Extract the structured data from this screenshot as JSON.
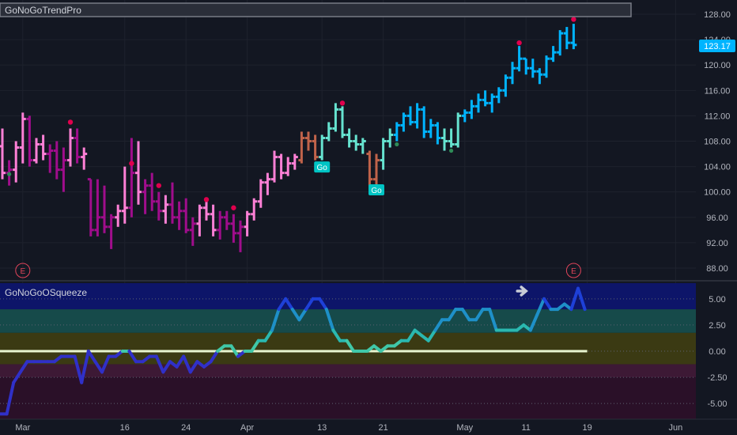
{
  "upper_panel": {
    "indicator_name": "GoNoGoTrendPro",
    "current_price": "123.17"
  },
  "lower_panel": {
    "indicator_name": "GoNoGoOSqueeze"
  },
  "chart_data": [
    {
      "type": "ohlc",
      "title": "GoNoGoTrendPro",
      "ylim": [
        86,
        130
      ],
      "y_ticks": [
        "128.00",
        "124.00",
        "120.00",
        "116.00",
        "112.00",
        "108.00",
        "104.00",
        "100.00",
        "96.00",
        "92.00",
        "88.00"
      ],
      "x_ticks": [
        "Mar",
        "16",
        "24",
        "Apr",
        "13",
        "21",
        "May",
        "11",
        "19",
        "Jun"
      ],
      "last_price": 123.17,
      "colors": {
        "go_strong": "#00b4ff",
        "go": "#66e3d0",
        "nogo_strong": "#a00d8c",
        "nogo": "#ff80d6",
        "amber": "#c0634a",
        "axis_label": "#b2b5be"
      },
      "bars": [
        {
          "o": 107.2,
          "h": 110.0,
          "l": 102.0,
          "c": 103.0,
          "col": "#ff80d6"
        },
        {
          "o": 103.0,
          "h": 105.0,
          "l": 101.0,
          "c": 103.5,
          "col": "#a00d8c"
        },
        {
          "o": 103.5,
          "h": 108.0,
          "l": 101.5,
          "c": 107.0,
          "col": "#ff80d6"
        },
        {
          "o": 107.0,
          "h": 112.5,
          "l": 104.5,
          "c": 111.5,
          "col": "#ff80d6"
        },
        {
          "o": 111.5,
          "h": 112.0,
          "l": 104.0,
          "c": 105.0,
          "col": "#a00d8c"
        },
        {
          "o": 105.0,
          "h": 108.5,
          "l": 104.5,
          "c": 107.5,
          "col": "#ff80d6"
        },
        {
          "o": 107.5,
          "h": 109.0,
          "l": 105.0,
          "c": 106.0,
          "col": "#ff80d6"
        },
        {
          "o": 106.0,
          "h": 107.5,
          "l": 103.0,
          "c": 106.5,
          "col": "#a00d8c"
        },
        {
          "o": 106.5,
          "h": 108.0,
          "l": 102.0,
          "c": 103.5,
          "col": "#a00d8c"
        },
        {
          "o": 103.5,
          "h": 107.0,
          "l": 100.0,
          "c": 105.0,
          "col": "#a00d8c"
        },
        {
          "o": 105.0,
          "h": 110.0,
          "l": 104.0,
          "c": 108.5,
          "col": "#ff80d6"
        },
        {
          "o": 108.5,
          "h": 110.0,
          "l": 104.5,
          "c": 105.5,
          "col": "#a00d8c"
        },
        {
          "o": 105.5,
          "h": 107.0,
          "l": 103.5,
          "c": 106.0,
          "col": "#ff80d6"
        },
        {
          "o": 102.0,
          "h": 102.0,
          "l": 93.0,
          "c": 94.0,
          "col": "#a00d8c"
        },
        {
          "o": 94.0,
          "h": 102.0,
          "l": 93.0,
          "c": 96.0,
          "col": "#a00d8c"
        },
        {
          "o": 96.0,
          "h": 101.0,
          "l": 93.5,
          "c": 94.5,
          "col": "#a00d8c"
        },
        {
          "o": 94.5,
          "h": 96.5,
          "l": 91.0,
          "c": 96.0,
          "col": "#a00d8c"
        },
        {
          "o": 96.0,
          "h": 98.0,
          "l": 94.5,
          "c": 97.0,
          "col": "#ff80d6"
        },
        {
          "o": 97.0,
          "h": 104.0,
          "l": 95.0,
          "c": 97.5,
          "col": "#ff80d6"
        },
        {
          "o": 97.5,
          "h": 108.5,
          "l": 96.0,
          "c": 103.0,
          "col": "#a00d8c"
        },
        {
          "o": 103.0,
          "h": 108.0,
          "l": 98.0,
          "c": 100.0,
          "col": "#ff80d6"
        },
        {
          "o": 100.0,
          "h": 102.0,
          "l": 96.5,
          "c": 101.0,
          "col": "#a00d8c"
        },
        {
          "o": 101.0,
          "h": 103.0,
          "l": 97.0,
          "c": 98.5,
          "col": "#a00d8c"
        },
        {
          "o": 98.5,
          "h": 100.0,
          "l": 95.5,
          "c": 97.0,
          "col": "#a00d8c"
        },
        {
          "o": 97.0,
          "h": 99.5,
          "l": 95.0,
          "c": 98.0,
          "col": "#ff80d6"
        },
        {
          "o": 98.0,
          "h": 101.5,
          "l": 95.0,
          "c": 96.0,
          "col": "#a00d8c"
        },
        {
          "o": 96.0,
          "h": 98.5,
          "l": 94.0,
          "c": 97.0,
          "col": "#a00d8c"
        },
        {
          "o": 97.0,
          "h": 99.0,
          "l": 93.5,
          "c": 94.0,
          "col": "#a00d8c"
        },
        {
          "o": 94.0,
          "h": 96.0,
          "l": 91.5,
          "c": 95.0,
          "col": "#a00d8c"
        },
        {
          "o": 95.0,
          "h": 98.0,
          "l": 93.0,
          "c": 97.5,
          "col": "#ff80d6"
        },
        {
          "o": 97.5,
          "h": 98.5,
          "l": 95.5,
          "c": 96.5,
          "col": "#ff80d6"
        },
        {
          "o": 96.5,
          "h": 98.0,
          "l": 93.0,
          "c": 94.0,
          "col": "#ff80d6"
        },
        {
          "o": 94.0,
          "h": 97.0,
          "l": 92.5,
          "c": 96.0,
          "col": "#a00d8c"
        },
        {
          "o": 96.0,
          "h": 97.0,
          "l": 94.0,
          "c": 95.0,
          "col": "#a00d8c"
        },
        {
          "o": 95.0,
          "h": 96.5,
          "l": 92.0,
          "c": 93.5,
          "col": "#a00d8c"
        },
        {
          "o": 93.5,
          "h": 95.5,
          "l": 90.5,
          "c": 94.5,
          "col": "#a00d8c"
        },
        {
          "o": 94.5,
          "h": 97.0,
          "l": 93.0,
          "c": 96.5,
          "col": "#ff80d6"
        },
        {
          "o": 96.5,
          "h": 99.0,
          "l": 95.5,
          "c": 98.5,
          "col": "#ff80d6"
        },
        {
          "o": 98.5,
          "h": 102.0,
          "l": 97.5,
          "c": 101.5,
          "col": "#ff80d6"
        },
        {
          "o": 101.5,
          "h": 103.0,
          "l": 99.5,
          "c": 102.0,
          "col": "#ff80d6"
        },
        {
          "o": 102.0,
          "h": 106.5,
          "l": 101.5,
          "c": 105.5,
          "col": "#ff80d6"
        },
        {
          "o": 105.5,
          "h": 106.0,
          "l": 102.0,
          "c": 103.0,
          "col": "#ff80d6"
        },
        {
          "o": 103.0,
          "h": 105.5,
          "l": 102.5,
          "c": 104.5,
          "col": "#ff80d6"
        },
        {
          "o": 104.5,
          "h": 106.0,
          "l": 103.5,
          "c": 105.5,
          "col": "#ff80d6"
        },
        {
          "o": 105.0,
          "h": 109.5,
          "l": 104.5,
          "c": 108.5,
          "col": "#c0634a"
        },
        {
          "o": 108.5,
          "h": 109.5,
          "l": 106.5,
          "c": 108.0,
          "col": "#c0634a"
        },
        {
          "o": 108.0,
          "h": 109.0,
          "l": 105.0,
          "c": 105.5,
          "col": "#c0634a"
        },
        {
          "o": 105.5,
          "h": 109.0,
          "l": 105.0,
          "c": 108.5,
          "col": "#66e3d0"
        },
        {
          "o": 108.5,
          "h": 111.0,
          "l": 108.0,
          "c": 110.0,
          "col": "#66e3d0"
        },
        {
          "o": 110.0,
          "h": 114.0,
          "l": 109.5,
          "c": 113.0,
          "col": "#66e3d0"
        },
        {
          "o": 113.0,
          "h": 113.5,
          "l": 108.5,
          "c": 109.0,
          "col": "#66e3d0"
        },
        {
          "o": 109.0,
          "h": 110.0,
          "l": 107.0,
          "c": 108.0,
          "col": "#66e3d0"
        },
        {
          "o": 108.0,
          "h": 109.0,
          "l": 106.5,
          "c": 107.5,
          "col": "#66e3d0"
        },
        {
          "o": 107.5,
          "h": 108.5,
          "l": 106.0,
          "c": 108.0,
          "col": "#66e3d0"
        },
        {
          "o": 106.0,
          "h": 106.5,
          "l": 101.0,
          "c": 102.0,
          "col": "#c0634a"
        },
        {
          "o": 102.0,
          "h": 106.0,
          "l": 101.0,
          "c": 105.0,
          "col": "#c0634a"
        },
        {
          "o": 105.0,
          "h": 108.5,
          "l": 103.5,
          "c": 108.0,
          "col": "#66e3d0"
        },
        {
          "o": 108.0,
          "h": 110.0,
          "l": 107.0,
          "c": 109.0,
          "col": "#66e3d0"
        },
        {
          "o": 109.0,
          "h": 111.0,
          "l": 108.0,
          "c": 110.5,
          "col": "#00b4ff"
        },
        {
          "o": 110.5,
          "h": 112.5,
          "l": 109.5,
          "c": 112.0,
          "col": "#00b4ff"
        },
        {
          "o": 112.0,
          "h": 113.5,
          "l": 110.5,
          "c": 111.0,
          "col": "#00b4ff"
        },
        {
          "o": 111.0,
          "h": 114.0,
          "l": 110.0,
          "c": 113.0,
          "col": "#00b4ff"
        },
        {
          "o": 113.0,
          "h": 113.5,
          "l": 108.5,
          "c": 109.5,
          "col": "#00b4ff"
        },
        {
          "o": 109.5,
          "h": 111.5,
          "l": 108.5,
          "c": 110.5,
          "col": "#00b4ff"
        },
        {
          "o": 110.5,
          "h": 111.0,
          "l": 107.5,
          "c": 108.5,
          "col": "#00b4ff"
        },
        {
          "o": 108.5,
          "h": 110.0,
          "l": 106.5,
          "c": 108.0,
          "col": "#66e3d0"
        },
        {
          "o": 108.0,
          "h": 110.0,
          "l": 107.0,
          "c": 107.5,
          "col": "#66e3d0"
        },
        {
          "o": 107.5,
          "h": 112.5,
          "l": 107.0,
          "c": 112.0,
          "col": "#66e3d0"
        },
        {
          "o": 112.0,
          "h": 113.0,
          "l": 111.0,
          "c": 112.5,
          "col": "#00b4ff"
        },
        {
          "o": 112.5,
          "h": 114.5,
          "l": 111.5,
          "c": 113.5,
          "col": "#00b4ff"
        },
        {
          "o": 113.5,
          "h": 115.5,
          "l": 112.5,
          "c": 114.5,
          "col": "#00b4ff"
        },
        {
          "o": 114.5,
          "h": 116.0,
          "l": 113.5,
          "c": 114.0,
          "col": "#00b4ff"
        },
        {
          "o": 114.0,
          "h": 115.5,
          "l": 112.5,
          "c": 115.0,
          "col": "#00b4ff"
        },
        {
          "o": 115.0,
          "h": 116.5,
          "l": 114.0,
          "c": 116.0,
          "col": "#00b4ff"
        },
        {
          "o": 116.0,
          "h": 118.5,
          "l": 115.0,
          "c": 118.0,
          "col": "#00b4ff"
        },
        {
          "o": 118.0,
          "h": 120.5,
          "l": 117.0,
          "c": 119.5,
          "col": "#00b4ff"
        },
        {
          "o": 119.5,
          "h": 123.0,
          "l": 119.0,
          "c": 121.0,
          "col": "#00b4ff"
        },
        {
          "o": 121.0,
          "h": 121.0,
          "l": 118.5,
          "c": 119.5,
          "col": "#00b4ff"
        },
        {
          "o": 119.5,
          "h": 121.0,
          "l": 118.0,
          "c": 119.0,
          "col": "#00b4ff"
        },
        {
          "o": 119.0,
          "h": 119.5,
          "l": 117.0,
          "c": 118.5,
          "col": "#00b4ff"
        },
        {
          "o": 118.5,
          "h": 121.5,
          "l": 118.0,
          "c": 121.0,
          "col": "#00b4ff"
        },
        {
          "o": 121.0,
          "h": 123.0,
          "l": 120.5,
          "c": 122.0,
          "col": "#00b4ff"
        },
        {
          "o": 122.0,
          "h": 125.5,
          "l": 121.5,
          "c": 125.0,
          "col": "#00b4ff"
        },
        {
          "o": 125.0,
          "h": 126.0,
          "l": 122.5,
          "c": 123.5,
          "col": "#00b4ff"
        },
        {
          "o": 123.5,
          "h": 126.5,
          "l": 122.5,
          "c": 123.17,
          "col": "#00b4ff"
        }
      ],
      "go_markers": [
        {
          "bar": 47,
          "price": 104.8,
          "label": "Go"
        },
        {
          "bar": 55,
          "price": 101.2,
          "label": "Go"
        }
      ],
      "nogo_dots": [
        {
          "bar": 10,
          "price": 111.0
        },
        {
          "bar": 19,
          "price": 104.5
        },
        {
          "bar": 23,
          "price": 101.0
        },
        {
          "bar": 30,
          "price": 98.8
        },
        {
          "bar": 34,
          "price": 97.5
        },
        {
          "bar": 50,
          "price": 114.0
        },
        {
          "bar": 76,
          "price": 123.5
        },
        {
          "bar": 84,
          "price": 127.2
        }
      ],
      "go_dots": [
        {
          "bar": 1,
          "price": 102.8
        },
        {
          "bar": 58,
          "price": 107.5
        },
        {
          "bar": 66,
          "price": 106.5
        }
      ],
      "earnings_markers": [
        {
          "bar": 3,
          "label": "E"
        },
        {
          "bar": 84,
          "label": "E"
        }
      ]
    },
    {
      "type": "line",
      "title": "GoNoGoOSqueeze",
      "ylim": [
        -6.5,
        6.5
      ],
      "y_ticks": [
        "5.00",
        "2.50",
        "0.00",
        "-2.50",
        "-5.00"
      ],
      "baseline": 0,
      "series": [
        {
          "values": [
            -6,
            -6,
            -3,
            -2,
            -1,
            -1,
            -1,
            -1,
            -1,
            -0.5,
            -0.5,
            -0.5,
            -3,
            0,
            -1,
            -2,
            -0.5,
            -0.5,
            0,
            0,
            -1,
            -1,
            -0.5,
            -0.5,
            -2,
            -1,
            -1.5,
            -0.5,
            -2,
            -1,
            -1.5,
            -1,
            0,
            0.5,
            0.5,
            -0.5,
            0,
            0,
            1,
            1,
            2,
            4,
            5,
            4,
            3,
            4,
            5,
            5,
            4,
            2,
            1,
            1,
            0,
            0,
            0,
            0.5,
            0,
            0.5,
            0.5,
            1,
            1,
            2,
            1.5,
            1,
            2,
            3,
            3,
            4,
            4,
            3,
            3,
            4,
            4,
            2,
            2,
            2,
            2,
            2.5,
            2,
            3.5,
            5,
            4,
            4,
            4.5,
            4,
            6,
            4
          ]
        }
      ],
      "arrow_marker_bar": 77
    }
  ]
}
